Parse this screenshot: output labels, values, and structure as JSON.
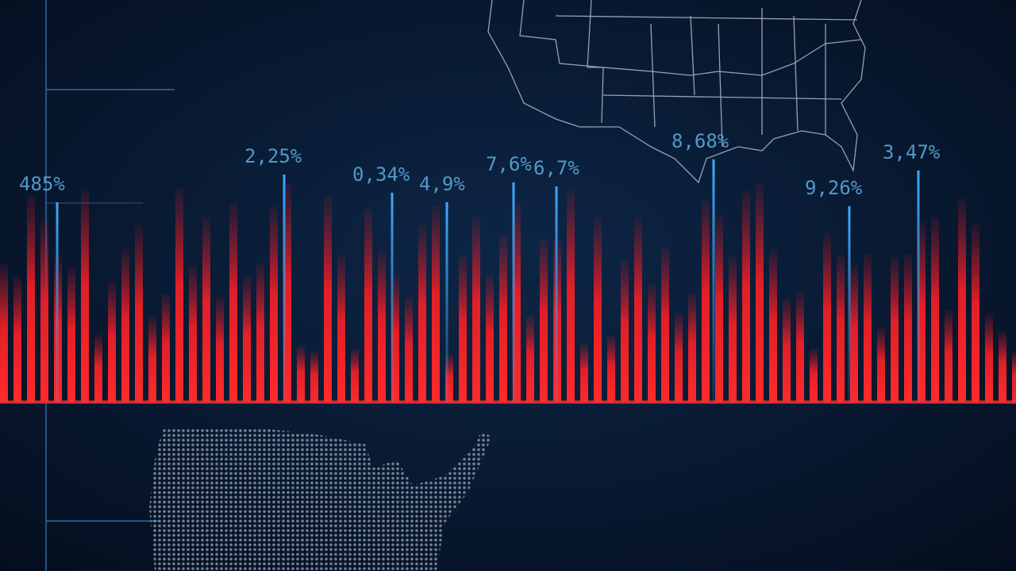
{
  "labels": [
    "485%",
    "2,25%",
    "0,34%",
    "4,9%",
    "7,6%",
    "6,7%",
    "8,68%",
    "9,26%",
    "3,47%"
  ]
}
